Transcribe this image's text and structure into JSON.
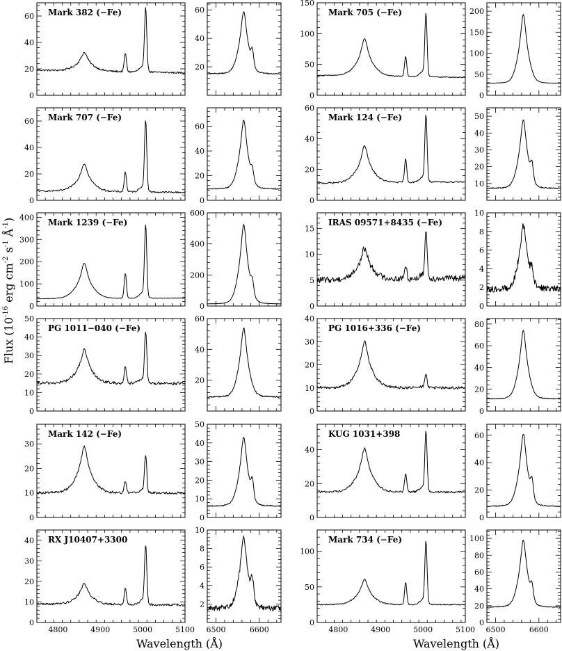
{
  "chart_data": {
    "type": "line",
    "figure": {
      "xlabel": "Wavelength (Å)",
      "ylabel_parts": {
        "flux": "Flux (10",
        "flux_exp": "-16",
        "unit_erg": " erg cm",
        "unit_cm_exp": "-2",
        "unit_s": " s",
        "unit_s_exp": "-1",
        "unit_A": " Å",
        "unit_A_exp": "-1",
        "close": ")"
      },
      "grid": false,
      "layout": "6 rows x 2 objects; each object shows an Hβ/[O III] panel and an Hα panel"
    },
    "hb_xlim": [
      4750,
      5100
    ],
    "hb_xticks": [
      4800,
      4900,
      5000,
      5100
    ],
    "ha_xlim": [
      6480,
      6650
    ],
    "ha_xticks": [
      6500,
      6600
    ],
    "objects": [
      {
        "name": "Mark 382 (−Fe)",
        "continuum": 19,
        "slope": -2,
        "noise": 0.7,
        "hb": {
          "ylim": [
            0,
            70
          ],
          "yticks": [
            0,
            20,
            40,
            60
          ],
          "hbeta_peak": 33,
          "o3_4959_peak": 33,
          "o3_5007_peak": 66
        },
        "ha": {
          "ylim": [
            0,
            65
          ],
          "yticks": [
            20,
            40,
            60
          ],
          "peak": 59,
          "wing": 15,
          "shoulder": 36
        }
      },
      {
        "name": "Mark 705 (−Fe)",
        "continuum": 32,
        "slope": -3,
        "noise": 0.8,
        "hb": {
          "ylim": [
            0,
            150
          ],
          "yticks": [
            0,
            50,
            100,
            150
          ],
          "hbeta_peak": 93,
          "o3_4959_peak": 65,
          "o3_5007_peak": 131
        },
        "ha": {
          "ylim": [
            0,
            220
          ],
          "yticks": [
            0,
            50,
            100,
            150,
            200
          ],
          "peak": 192,
          "wing": 28,
          "shoulder": 0
        }
      },
      {
        "name": "Mark 707 (−Fe)",
        "continuum": 7,
        "slope": -1,
        "noise": 0.6,
        "hb": {
          "ylim": [
            0,
            70
          ],
          "yticks": [
            0,
            20,
            40,
            60
          ],
          "hbeta_peak": 28,
          "o3_4959_peak": 22,
          "o3_5007_peak": 59
        },
        "ha": {
          "ylim": [
            0,
            75
          ],
          "yticks": [
            0,
            20,
            40,
            60
          ],
          "peak": 65,
          "wing": 9,
          "shoulder": 26
        }
      },
      {
        "name": "Mark 124 (−Fe)",
        "continuum": 11,
        "slope": 1,
        "noise": 0.5,
        "hb": {
          "ylim": [
            0,
            60
          ],
          "yticks": [
            0,
            20,
            40,
            60
          ],
          "hbeta_peak": 35,
          "o3_4959_peak": 26,
          "o3_5007_peak": 53
        },
        "ha": {
          "ylim": [
            0,
            55
          ],
          "yticks": [
            10,
            20,
            30,
            40,
            50
          ],
          "peak": 48,
          "wing": 7,
          "shoulder": 26
        }
      },
      {
        "name": "Mark 1239 (−Fe)",
        "continuum": 32,
        "slope": 4,
        "noise": 1.2,
        "hb": {
          "ylim": [
            0,
            420
          ],
          "yticks": [
            0,
            100,
            200,
            300,
            400
          ],
          "hbeta_peak": 192,
          "o3_4959_peak": 145,
          "o3_5007_peak": 350
        },
        "ha": {
          "ylim": [
            0,
            600
          ],
          "yticks": [
            0,
            200,
            400,
            600
          ],
          "peak": 525,
          "wing": 12,
          "shoulder": 170
        }
      },
      {
        "name": "IRAS 09571+8435 (−Fe)",
        "continuum": 5,
        "slope": 0.4,
        "noise": 0.6,
        "hb": {
          "ylim": [
            0,
            18
          ],
          "yticks": [
            0,
            5,
            10,
            15
          ],
          "hbeta_peak": 11,
          "o3_4959_peak": 7.5,
          "o3_5007_peak": 14
        },
        "ha": {
          "ylim": [
            0,
            10
          ],
          "yticks": [
            0,
            2,
            4,
            6,
            8,
            10
          ],
          "peak": 8.7,
          "wing": 1.8,
          "shoulder": 4.6
        }
      },
      {
        "name": "PG 1011−040 (−Fe)",
        "continuum": 15,
        "slope": 0,
        "noise": 0.8,
        "hb": {
          "ylim": [
            0,
            50
          ],
          "yticks": [
            0,
            10,
            20,
            30,
            40,
            50
          ],
          "hbeta_peak": 33,
          "o3_4959_peak": 24,
          "o3_5007_peak": 42
        },
        "ha": {
          "ylim": [
            0,
            60
          ],
          "yticks": [
            20,
            40,
            60
          ],
          "peak": 54,
          "wing": 9,
          "shoulder": 0
        }
      },
      {
        "name": "PG 1016+336 (−Fe)",
        "continuum": 10,
        "slope": 0,
        "noise": 0.6,
        "hb": {
          "ylim": [
            0,
            40
          ],
          "yticks": [
            0,
            10,
            20,
            30,
            40
          ],
          "hbeta_peak": 30,
          "o3_4959_peak": 10,
          "o3_5007_peak": 16
        },
        "ha": {
          "ylim": [
            0,
            85
          ],
          "yticks": [
            0,
            20,
            40,
            60,
            80
          ],
          "peak": 74,
          "wing": 11,
          "shoulder": 0
        }
      },
      {
        "name": "Mark 142 (−Fe)",
        "continuum": 10,
        "slope": 0,
        "noise": 0.5,
        "hb": {
          "ylim": [
            0,
            38
          ],
          "yticks": [
            0,
            10,
            20,
            30
          ],
          "hbeta_peak": 29,
          "o3_4959_peak": 15,
          "o3_5007_peak": 25
        },
        "ha": {
          "ylim": [
            0,
            50
          ],
          "yticks": [
            0,
            10,
            20,
            30,
            40,
            50
          ],
          "peak": 43,
          "wing": 6,
          "shoulder": 24
        }
      },
      {
        "name": "KUG 1031+398",
        "continuum": 15,
        "slope": 0,
        "noise": 0.6,
        "hb": {
          "ylim": [
            0,
            55
          ],
          "yticks": [
            0,
            20,
            40
          ],
          "hbeta_peak": 41,
          "o3_4959_peak": 26,
          "o3_5007_peak": 50
        },
        "ha": {
          "ylim": [
            0,
            68
          ],
          "yticks": [
            0,
            20,
            40,
            60
          ],
          "peak": 61,
          "wing": 8,
          "shoulder": 33
        }
      },
      {
        "name": "RX J10407+3300",
        "continuum": 9,
        "slope": -0.5,
        "noise": 0.5,
        "hb": {
          "ylim": [
            0,
            45
          ],
          "yticks": [
            0,
            10,
            20,
            30,
            40
          ],
          "hbeta_peak": 19,
          "o3_4959_peak": 17,
          "o3_5007_peak": 37
        },
        "ha": {
          "ylim": [
            0,
            10
          ],
          "yticks": [
            2,
            4,
            6,
            8,
            10
          ],
          "peak": 9.2,
          "wing": 1.5,
          "shoulder": 5.8
        }
      },
      {
        "name": "Mark 734 (−Fe)",
        "continuum": 25,
        "slope": 0,
        "noise": 0.8,
        "hb": {
          "ylim": [
            0,
            130
          ],
          "yticks": [
            0,
            50,
            100
          ],
          "hbeta_peak": 61,
          "o3_4959_peak": 56,
          "o3_5007_peak": 110
        },
        "ha": {
          "ylim": [
            0,
            110
          ],
          "yticks": [
            0,
            20,
            40,
            60,
            80,
            100
          ],
          "peak": 98,
          "wing": 18,
          "shoulder": 50
        }
      }
    ]
  }
}
